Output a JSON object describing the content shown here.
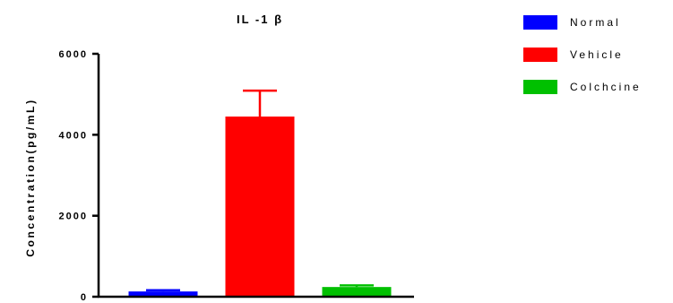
{
  "chart_data": {
    "type": "bar",
    "title": "IL -1 β",
    "ylabel": "Concentration(pg/mL)",
    "xlabel": "",
    "ylim": [
      0,
      6000
    ],
    "yticks": [
      0,
      2000,
      4000,
      6000
    ],
    "ytick_labels": [
      "0",
      "2000",
      "4000",
      "6000"
    ],
    "categories": [
      "Normal",
      "Vehicle",
      "Colchcine"
    ],
    "values": [
      130,
      4450,
      240
    ],
    "errors": [
      30,
      640,
      40
    ],
    "colors": [
      "#0000ff",
      "#ff0000",
      "#00c000"
    ],
    "legend": {
      "placement": "top-right",
      "entries": [
        "Normal",
        "Vehicle",
        "Colchcine"
      ]
    },
    "grid": false
  }
}
